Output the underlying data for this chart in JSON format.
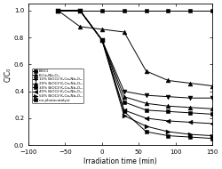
{
  "title": "",
  "xlabel": "Irradiation time (min)",
  "ylabel": "C/C₀",
  "xlim": [
    -100,
    150
  ],
  "ylim": [
    0.0,
    1.05
  ],
  "yticks": [
    0.0,
    0.2,
    0.4,
    0.6,
    0.8,
    1.0
  ],
  "xticks": [
    -100,
    -50,
    0,
    50,
    100,
    150
  ],
  "series": [
    {
      "label": "BiOCl",
      "marker": "s",
      "x": [
        -60,
        -30,
        0,
        30,
        60,
        90,
        120,
        150
      ],
      "y": [
        1.0,
        1.0,
        0.78,
        0.25,
        0.1,
        0.07,
        0.06,
        0.05
      ]
    },
    {
      "label": "K₂Ca₂Nb₃O₁₀",
      "marker": "^",
      "x": [
        -60,
        -30,
        0,
        30,
        60,
        90,
        120,
        150
      ],
      "y": [
        1.0,
        0.88,
        0.86,
        0.84,
        0.55,
        0.48,
        0.46,
        0.44
      ]
    },
    {
      "label": "10% BiOCl/ K₂Ca₂Nb₃O₁₀",
      "marker": "v",
      "x": [
        -60,
        -30,
        0,
        30,
        60,
        90,
        120,
        150
      ],
      "y": [
        1.0,
        1.0,
        0.78,
        0.4,
        0.37,
        0.36,
        0.35,
        0.35
      ]
    },
    {
      "label": "20% BiOCl/ K₂Ca₂Nb₃O₁₀",
      "marker": "^",
      "x": [
        -60,
        -30,
        0,
        30,
        60,
        90,
        120,
        150
      ],
      "y": [
        1.0,
        1.0,
        0.78,
        0.36,
        0.31,
        0.29,
        0.28,
        0.27
      ]
    },
    {
      "label": "30% BiOCl/ K₂Ca₂Nb₃O₁₀",
      "marker": "s",
      "x": [
        -60,
        -30,
        0,
        30,
        60,
        90,
        120,
        150
      ],
      "y": [
        1.0,
        1.0,
        0.78,
        0.32,
        0.26,
        0.25,
        0.24,
        0.23
      ]
    },
    {
      "label": "40% BiOCl/ K₂Ca₂Nb₃O₁₀",
      "marker": "<",
      "x": [
        -60,
        -30,
        0,
        30,
        60,
        90,
        120,
        150
      ],
      "y": [
        1.0,
        1.0,
        0.78,
        0.26,
        0.2,
        0.18,
        0.17,
        0.16
      ]
    },
    {
      "label": "50% BiOCl/ K₂Ca₂Nb₃O₁₀",
      "marker": ">",
      "x": [
        -60,
        -30,
        0,
        30,
        60,
        90,
        120,
        150
      ],
      "y": [
        1.0,
        1.0,
        0.78,
        0.22,
        0.14,
        0.1,
        0.08,
        0.07
      ]
    },
    {
      "label": "no photocatalyst",
      "marker": "s",
      "x": [
        -60,
        -30,
        0,
        30,
        60,
        90,
        120,
        150
      ],
      "y": [
        1.0,
        1.0,
        1.0,
        1.0,
        1.0,
        1.0,
        1.0,
        1.0
      ]
    }
  ],
  "background_color": "#ffffff"
}
